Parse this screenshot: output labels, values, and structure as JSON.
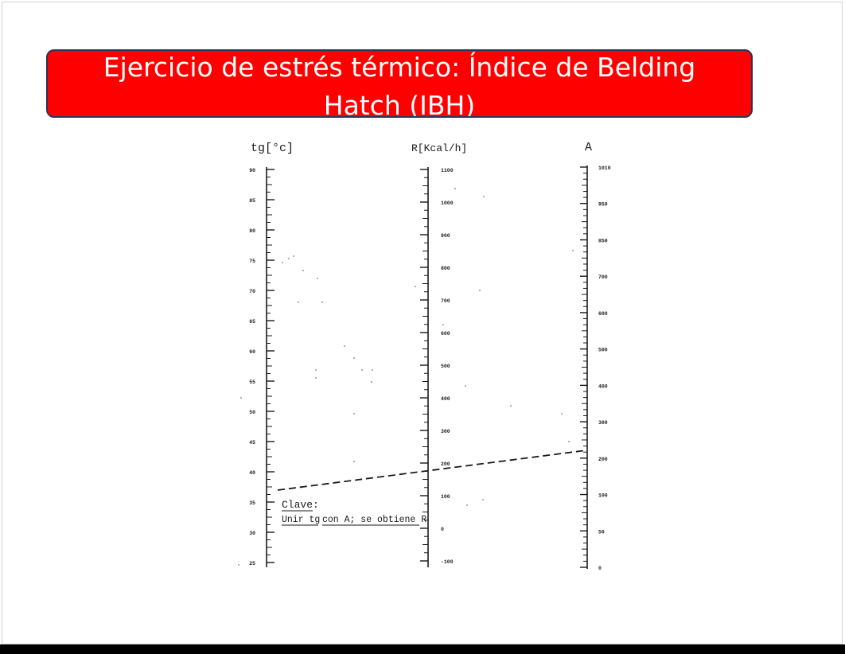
{
  "slide": {
    "title": "Ejercicio de estrés térmico: Índice de Belding Hatch (IBH)"
  },
  "nomogram": {
    "scale_tg": {
      "label": "tg[°c]",
      "ticks": [
        "90",
        "85",
        "80",
        "75",
        "70",
        "65",
        "60",
        "55",
        "50",
        "45",
        "40",
        "35",
        "30",
        "25"
      ]
    },
    "scale_r": {
      "label": "R[Kcal/h]",
      "ticks": [
        "1100",
        "1000",
        "900",
        "800",
        "700",
        "600",
        "500",
        "400",
        "300",
        "200",
        "100",
        "0",
        "-100"
      ]
    },
    "scale_a": {
      "label": "A",
      "ticks": [
        "1010",
        "950",
        "850",
        "700",
        "600",
        "500",
        "400",
        "300",
        "200",
        "100",
        "50",
        "0"
      ]
    },
    "key": {
      "title": "Clave:",
      "instruction_part1": "Unir tg",
      "instruction_part2": "con A; se obtiene R"
    },
    "colors": {
      "ink": "#1a1a1a",
      "title_fill": "#ff0000",
      "title_text": "#ffffff"
    }
  }
}
